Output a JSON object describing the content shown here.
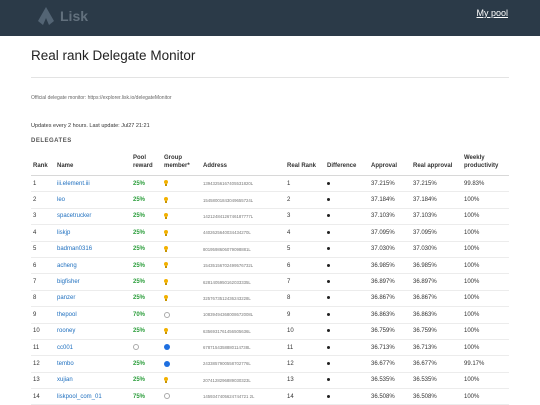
{
  "nav": {
    "logo_text": "Lisk",
    "my_pool": "My pool"
  },
  "page": {
    "title": "Real rank Delegate Monitor",
    "official_info": "Official delegate monitor: https://explorer.lisk.io/delegateMonitor",
    "updates": "Updates every 2 hours. Last update: Jul27 21:21",
    "section": "DELEGATES"
  },
  "table": {
    "headers": {
      "rank": "Rank",
      "name": "Name",
      "pool_reward": "Pool reward",
      "group_member": "Group member*",
      "address": "Address",
      "real_rank": "Real Rank",
      "difference": "Difference",
      "approval": "Approval",
      "real_approval": "Real approval",
      "weekly": "Weekly productivity"
    },
    "rows": [
      {
        "rank": "1",
        "name": "iii.element.iii",
        "reward": "25%",
        "member": "bulb",
        "address": "13943256167405531820L",
        "real_rank": "1",
        "approval": "37.215%",
        "real_approval": "37.215%",
        "weekly": "99.83%"
      },
      {
        "rank": "2",
        "name": "leo",
        "reward": "25%",
        "member": "bulb",
        "address": "15458001843049655724L",
        "real_rank": "2",
        "approval": "37.184%",
        "real_approval": "37.184%",
        "weekly": "100%"
      },
      {
        "rank": "3",
        "name": "spacetrucker",
        "reward": "25%",
        "member": "bulb",
        "address": "14212484126746187777L",
        "real_rank": "3",
        "approval": "37.103%",
        "real_approval": "37.103%",
        "weekly": "100%"
      },
      {
        "rank": "4",
        "name": "liskjp",
        "reward": "25%",
        "member": "bulb",
        "address": "4402625640034434270L",
        "real_rank": "4",
        "approval": "37.095%",
        "real_approval": "37.095%",
        "weekly": "100%"
      },
      {
        "rank": "5",
        "name": "badman0316",
        "reward": "25%",
        "member": "bulb",
        "address": "8019598606079098881L",
        "real_rank": "5",
        "approval": "37.030%",
        "real_approval": "37.030%",
        "weekly": "100%"
      },
      {
        "rank": "6",
        "name": "acheng",
        "reward": "25%",
        "member": "bulb",
        "address": "15435156702499576732L",
        "real_rank": "6",
        "approval": "36.985%",
        "real_approval": "36.985%",
        "weekly": "100%"
      },
      {
        "rank": "7",
        "name": "bigfisher",
        "reward": "25%",
        "member": "bulb",
        "address": "6281405950162033335L",
        "real_rank": "7",
        "approval": "36.897%",
        "real_approval": "36.897%",
        "weekly": "100%"
      },
      {
        "rank": "8",
        "name": "panzer",
        "reward": "25%",
        "member": "bulb",
        "address": "3257673512436243228L",
        "real_rank": "8",
        "approval": "36.867%",
        "real_approval": "36.867%",
        "weekly": "100%"
      },
      {
        "rank": "9",
        "name": "thepool",
        "reward": "70%",
        "member": "empty",
        "address": "10839494368008672008L",
        "real_rank": "9",
        "approval": "36.863%",
        "real_approval": "36.863%",
        "weekly": "100%"
      },
      {
        "rank": "10",
        "name": "rooney",
        "reward": "25%",
        "member": "bulb",
        "address": "6356931761456505636L",
        "real_rank": "10",
        "approval": "36.759%",
        "real_approval": "36.759%",
        "weekly": "100%"
      },
      {
        "rank": "11",
        "name": "cc001",
        "reward": "",
        "reward_icon": "empty",
        "member": "full",
        "address": "6787154358880114738L",
        "real_rank": "11",
        "approval": "36.713%",
        "real_approval": "36.713%",
        "weekly": "100%"
      },
      {
        "rank": "12",
        "name": "tembo",
        "reward": "25%",
        "member": "full",
        "address": "2433857900558702776L",
        "real_rank": "12",
        "approval": "36.677%",
        "real_approval": "36.677%",
        "weekly": "99.17%"
      },
      {
        "rank": "13",
        "name": "xujian",
        "reward": "25%",
        "member": "bulb",
        "address": "2074128296889030323L",
        "real_rank": "13",
        "approval": "36.535%",
        "real_approval": "36.535%",
        "weekly": "100%"
      },
      {
        "rank": "14",
        "name": "liskpool_com_01",
        "reward": "75%",
        "member": "empty",
        "address": "1459347405624744721 2L",
        "real_rank": "14",
        "approval": "36.508%",
        "real_approval": "36.508%",
        "weekly": "100%"
      }
    ]
  }
}
